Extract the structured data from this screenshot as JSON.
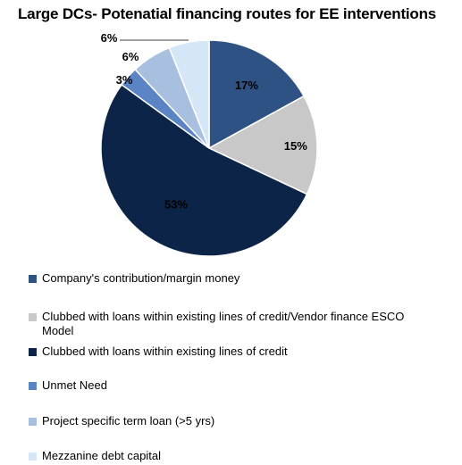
{
  "chart_data": {
    "type": "pie",
    "title": "Large DCs- Potenatial financing routes for EE interventions",
    "slices": [
      {
        "label": "Company's contribution/margin money",
        "value": 17,
        "data_label": "17%",
        "color": "#2e5283"
      },
      {
        "label": "Clubbed with  loans within existing lines of credit/Vendor finance ESCO Model",
        "value": 15,
        "data_label": "15%",
        "color": "#c8c8c8"
      },
      {
        "label": "Clubbed with  loans within existing lines of credit",
        "value": 53,
        "data_label": "53%",
        "color": "#0d2449"
      },
      {
        "label": "Unmet Need",
        "value": 3,
        "data_label": "3%",
        "color": "#5b84c4"
      },
      {
        "label": "Project specific term loan (>5 yrs)",
        "value": 6,
        "data_label": "6%",
        "color": "#a9bfe0"
      },
      {
        "label": "Mezzanine debt capital",
        "value": 6,
        "data_label": "6%",
        "color": "#d5e6f7"
      }
    ],
    "legend_position": "bottom",
    "start_angle": "12 o'clock, clockwise"
  }
}
